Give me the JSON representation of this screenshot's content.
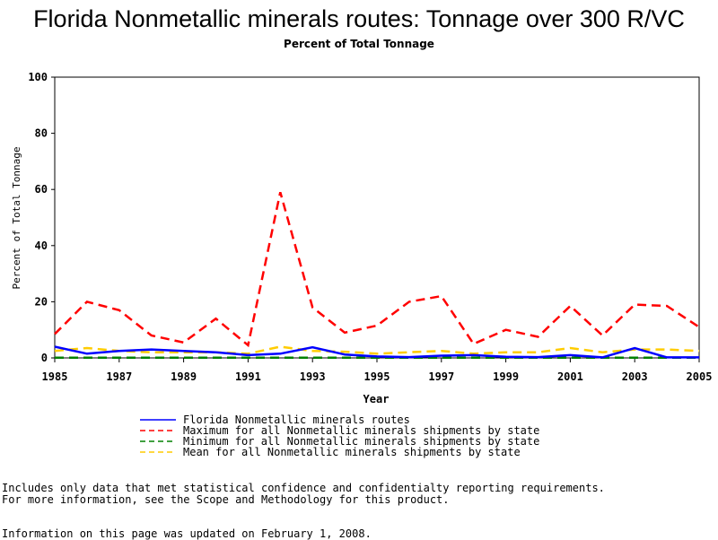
{
  "title": "Florida Nonmetallic minerals routes: Tonnage over 300 R/VC",
  "subtitle": "Percent of Total Tonnage",
  "notes": [
    "Includes only data that met statistical confidence and confidentialty reporting requirements.",
    "For more information, see the Scope and Methodology for this product.",
    "Information on this page was updated on February 1, 2008."
  ],
  "chart_data": {
    "type": "line",
    "xlabel": "Year",
    "ylabel": "Percent of Total Tonnage",
    "xlim": [
      1985,
      2005
    ],
    "ylim": [
      0,
      100
    ],
    "x_ticks": [
      "1985",
      "1987",
      "1989",
      "1991",
      "1993",
      "1995",
      "1997",
      "1999",
      "2001",
      "2003",
      "2005"
    ],
    "y_ticks": [
      "0",
      "20",
      "40",
      "60",
      "80",
      "100"
    ],
    "grid": false,
    "legend_position": "bottom",
    "x": [
      1985,
      1986,
      1987,
      1988,
      1989,
      1990,
      1991,
      1992,
      1993,
      1994,
      1995,
      1996,
      1997,
      1998,
      1999,
      2000,
      2001,
      2002,
      2003,
      2004,
      2005
    ],
    "series": [
      {
        "name": "Florida Nonmetallic minerals routes",
        "color": "#0000ff",
        "dash": "solid",
        "values": [
          4,
          1.5,
          2.5,
          3,
          2.5,
          2,
          1,
          1.5,
          3.8,
          1.2,
          0.5,
          0.3,
          0.8,
          1,
          0.4,
          0.3,
          1,
          0.2,
          3.5,
          0.2,
          0.2
        ]
      },
      {
        "name": "Maximum for all Nonmetallic minerals shipments by state",
        "color": "#ff0000",
        "dash": "dashed",
        "values": [
          8.5,
          20,
          17,
          8,
          5.5,
          14,
          4.5,
          59,
          18,
          9,
          11.5,
          20,
          22,
          5,
          10,
          7.5,
          18.5,
          8,
          19,
          18.5,
          11
        ]
      },
      {
        "name": "Minimum for all Nonmetallic minerals shipments by state",
        "color": "#008000",
        "dash": "dashed",
        "values": [
          0.1,
          0.1,
          0.1,
          0.1,
          0.1,
          0.1,
          0.1,
          0.1,
          0.1,
          0.1,
          0.1,
          0.1,
          0.1,
          0.1,
          0.1,
          0.1,
          0.1,
          0.1,
          0.1,
          0.1,
          0.1
        ]
      },
      {
        "name": "Mean for all Nonmetallic minerals shipments by state",
        "color": "#ffcc00",
        "dash": "dashed",
        "values": [
          2.5,
          3.5,
          2.5,
          2,
          2,
          2,
          1.5,
          4,
          2.5,
          2.2,
          1.5,
          2,
          2.5,
          1.5,
          2,
          2,
          3.5,
          2,
          3,
          3,
          2.5
        ]
      }
    ]
  }
}
